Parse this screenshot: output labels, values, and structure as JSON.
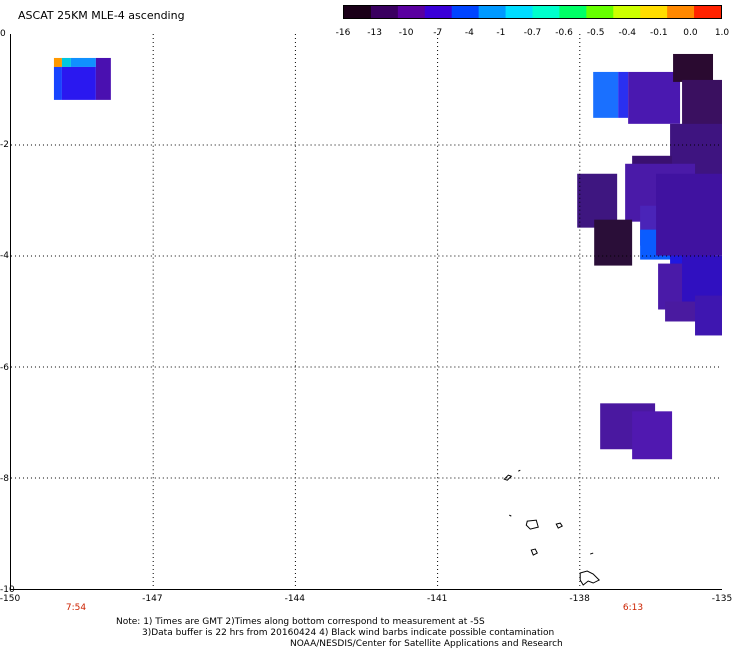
{
  "title": "ASCAT 25KM MLE-4 ascending",
  "colorbar": {
    "labels": [
      "-16",
      "-13",
      "-10",
      "-7",
      "-4",
      "-1",
      "-0.7",
      "-0.6",
      "-0.5",
      "-0.4",
      "-0.1",
      "0.0",
      "1.0"
    ],
    "colors": [
      "#1a0018",
      "#3a0060",
      "#5a00a0",
      "#3a00d8",
      "#0044ff",
      "#0099ff",
      "#00ddff",
      "#00ffcc",
      "#00ff66",
      "#66ff00",
      "#ccff00",
      "#ffdd00",
      "#ff8800",
      "#ff2200"
    ]
  },
  "axes": {
    "x_labels": [
      "-150",
      "-147",
      "-144",
      "-141",
      "-138",
      "-135"
    ],
    "y_labels": [
      "0",
      "-2",
      "-4",
      "-6",
      "-8",
      "-10"
    ],
    "xlim": [
      -150,
      -135
    ],
    "ylim": [
      -10,
      0
    ],
    "grid": "dotted"
  },
  "times": {
    "left": "7:54",
    "right": "6:13",
    "color": "#cc2200"
  },
  "notes": {
    "line1": "Note: 1) Times are GMT 2)Times along bottom correspond to measurement at -5S",
    "line2": "3)Data buffer is 22 hrs from 20160424 4) Black wind barbs indicate possible contamination",
    "line3": "NOAA/NESDIS/Center for Satellite Applications and Research"
  }
}
